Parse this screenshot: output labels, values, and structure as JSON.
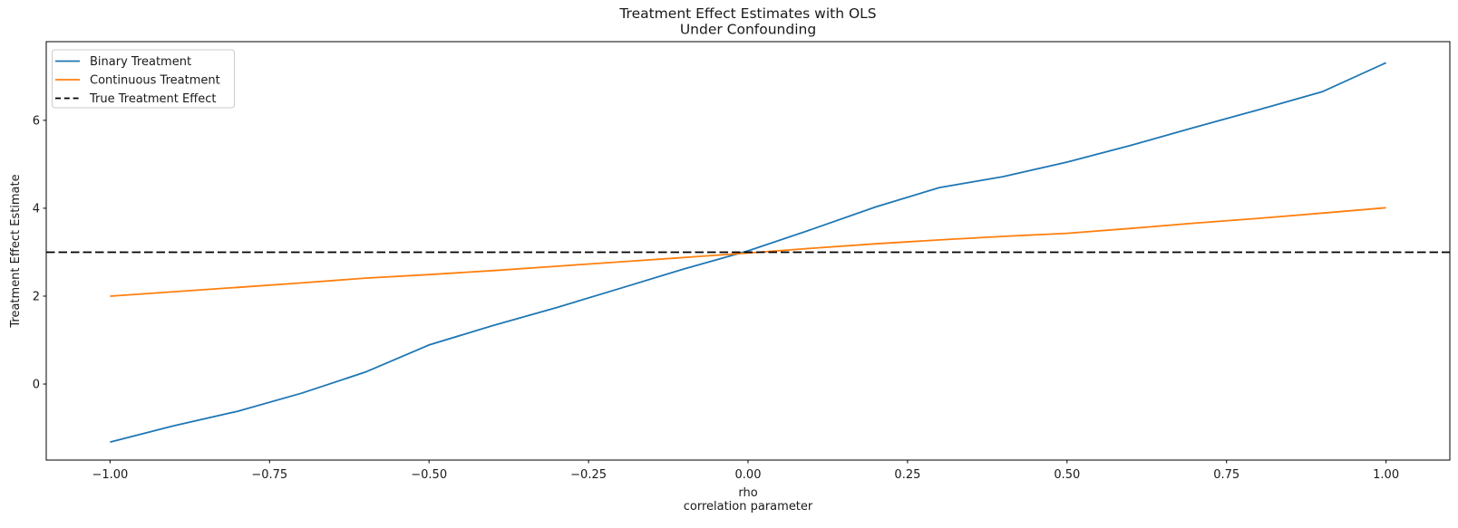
{
  "title": {
    "line1": "Treatment Effect Estimates with OLS",
    "line2": "Under Confounding"
  },
  "axes": {
    "ylabel": "Treatment Effect Estimate",
    "xlabel_line1": "rho",
    "xlabel_line2": "correlation parameter",
    "x_ticks": [
      {
        "label": "−1.00",
        "value": -1.0
      },
      {
        "label": "−0.75",
        "value": -0.75
      },
      {
        "label": "−0.50",
        "value": -0.5
      },
      {
        "label": "−0.25",
        "value": -0.25
      },
      {
        "label": "0.00",
        "value": 0.0
      },
      {
        "label": "0.25",
        "value": 0.25
      },
      {
        "label": "0.50",
        "value": 0.5
      },
      {
        "label": "0.75",
        "value": 0.75
      },
      {
        "label": "1.00",
        "value": 1.0
      }
    ],
    "y_ticks": [
      {
        "label": "0",
        "value": 0
      },
      {
        "label": "2",
        "value": 2
      },
      {
        "label": "4",
        "value": 4
      },
      {
        "label": "6",
        "value": 6
      }
    ]
  },
  "legend": {
    "items": [
      {
        "label": "Binary Treatment",
        "color": "#1f77b4",
        "dash": "solid"
      },
      {
        "label": "Continuous Treatment",
        "color": "#ff7f0e",
        "dash": "solid"
      },
      {
        "label": "True Treatment Effect",
        "color": "#000000",
        "dash": "dashed"
      }
    ]
  },
  "chart_data": {
    "type": "line",
    "title": "Treatment Effect Estimates with OLS\nUnder Confounding",
    "xlabel": "rho\ncorrelation parameter",
    "ylabel": "Treatment Effect Estimate",
    "xlim": [
      -1.1,
      1.1
    ],
    "ylim": [
      -1.73,
      7.79
    ],
    "grid": false,
    "legend_position": "upper left",
    "x": [
      -1.0,
      -0.9,
      -0.8,
      -0.7,
      -0.6,
      -0.5,
      -0.4,
      -0.3,
      -0.2,
      -0.1,
      0.0,
      0.1,
      0.2,
      0.3,
      0.4,
      0.5,
      0.6,
      0.7,
      0.8,
      0.9,
      1.0
    ],
    "series": [
      {
        "name": "Binary Treatment",
        "color": "#1f77b4",
        "dash": "solid",
        "values": [
          -1.32,
          -0.95,
          -0.62,
          -0.21,
          0.27,
          0.89,
          1.33,
          1.74,
          2.18,
          2.62,
          3.03,
          3.52,
          4.03,
          4.47,
          4.72,
          5.05,
          5.43,
          5.84,
          6.24,
          6.65,
          7.31
        ]
      },
      {
        "name": "Continuous Treatment",
        "color": "#ff7f0e",
        "dash": "solid",
        "values": [
          2.0,
          2.1,
          2.2,
          2.3,
          2.41,
          2.49,
          2.58,
          2.68,
          2.78,
          2.88,
          2.98,
          3.09,
          3.19,
          3.28,
          3.36,
          3.43,
          3.54,
          3.66,
          3.77,
          3.89,
          4.01
        ]
      },
      {
        "name": "True Treatment Effect",
        "color": "#000000",
        "dash": "dashed",
        "type": "hline",
        "y": 3.0
      }
    ]
  }
}
